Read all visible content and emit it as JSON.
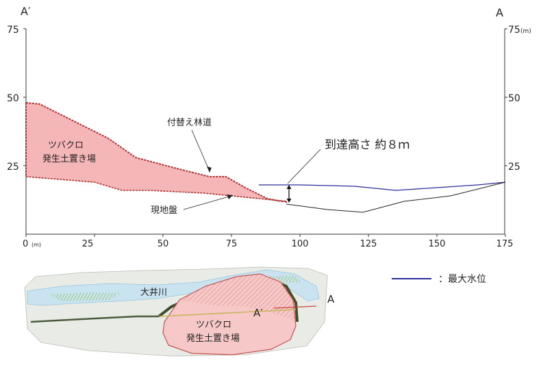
{
  "profile": {
    "left_point": "A′",
    "right_point": "A",
    "left_axis_ticks": [
      "75",
      "50",
      "25"
    ],
    "right_axis_ticks": [
      "75",
      "50",
      "25"
    ],
    "right_unit": "(m)",
    "x_ticks": [
      "0",
      "25",
      "50",
      "75",
      "100",
      "125",
      "150",
      "175"
    ],
    "x_unit": "(m)",
    "labels": {
      "deposit": [
        "ツバクロ",
        "発生土置き場"
      ],
      "road": "付替え林道",
      "ground": "現地盤",
      "reach": "到達高さ 約８ｍ"
    },
    "deposit_upper": [
      [
        0,
        48
      ],
      [
        5,
        47.5
      ],
      [
        30,
        35
      ],
      [
        40,
        28
      ],
      [
        55,
        24
      ],
      [
        67,
        21
      ],
      [
        73,
        21
      ],
      [
        80,
        17
      ],
      [
        88,
        13
      ],
      [
        93,
        12
      ],
      [
        95,
        12
      ]
    ],
    "ground_line": [
      [
        0,
        21
      ],
      [
        25,
        19
      ],
      [
        35,
        16
      ],
      [
        45,
        16
      ],
      [
        55,
        15.5
      ],
      [
        65,
        15
      ],
      [
        75,
        14
      ],
      [
        85,
        13
      ],
      [
        95,
        12
      ]
    ],
    "max_water_level": [
      [
        85,
        18
      ],
      [
        100,
        18
      ],
      [
        120,
        17.5
      ],
      [
        135,
        16
      ],
      [
        150,
        17
      ],
      [
        165,
        18
      ],
      [
        175,
        19
      ]
    ],
    "river_bed": [
      [
        95,
        11
      ],
      [
        110,
        9
      ],
      [
        123,
        8
      ],
      [
        138,
        12
      ],
      [
        155,
        14
      ],
      [
        175,
        19
      ]
    ],
    "reach_x": 96,
    "colors": {
      "deposit_fill": "#f4b6b6",
      "deposit_edge": "#b03030",
      "water": "#2a2a9a"
    }
  },
  "legend": {
    "label": "：最大水位"
  },
  "map": {
    "river_name": "大井川",
    "site_name": [
      "ツバクロ",
      "発生土置き場"
    ],
    "point_a": "A",
    "point_a_prime": "A′"
  }
}
